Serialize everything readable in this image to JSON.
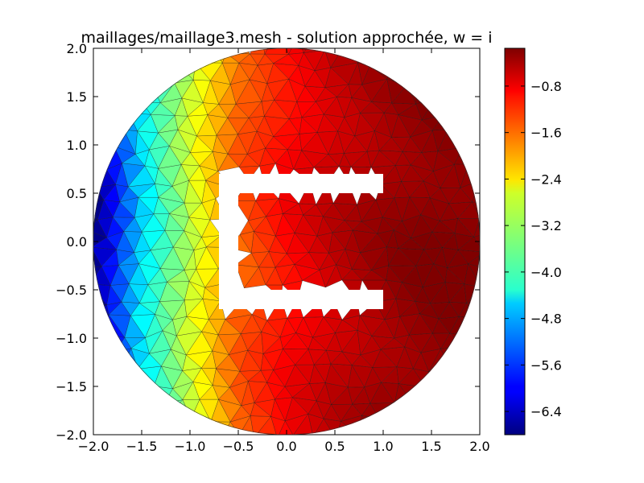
{
  "chart_data": {
    "type": "heatmap",
    "subtype": "tripcolor-mesh",
    "title": "maillages/maillage3.mesh - solution approchée, w = i",
    "xlabel": "",
    "ylabel": "",
    "xlim": [
      -2.0,
      2.0
    ],
    "ylim": [
      -2.0,
      2.0
    ],
    "x_ticks": [
      -2.0,
      -1.5,
      -1.0,
      -0.5,
      0.0,
      0.5,
      1.0,
      1.5,
      2.0
    ],
    "y_ticks": [
      -2.0,
      -1.5,
      -1.0,
      -0.5,
      0.0,
      0.5,
      1.0,
      1.5,
      2.0
    ],
    "x_tick_labels": [
      "−2.0",
      "−1.5",
      "−1.0",
      "−0.5",
      "0.0",
      "0.5",
      "1.0",
      "1.5",
      "2.0"
    ],
    "y_tick_labels": [
      "−2.0",
      "−1.5",
      "−1.0",
      "−0.5",
      "0.0",
      "0.5",
      "1.0",
      "1.5",
      "2.0"
    ],
    "grid": false,
    "domain": {
      "shape": "disk",
      "center": [
        0,
        0
      ],
      "radius": 2.0,
      "hole": {
        "shape": "C-shaped slot",
        "outer_x": [
          -0.7,
          1.0
        ],
        "outer_y": [
          -0.7,
          0.7
        ],
        "arm_thickness": 0.2,
        "opening": "right"
      }
    },
    "field": {
      "description": "approximate solution, increasing from left to right",
      "approx_value_at_x": [
        {
          "x": -2.0,
          "value": -6.8
        },
        {
          "x": -1.5,
          "value": -4.5
        },
        {
          "x": -1.0,
          "value": -3.0
        },
        {
          "x": -0.5,
          "value": -1.6
        },
        {
          "x": 0.0,
          "value": -1.0
        },
        {
          "x": 0.5,
          "value": -0.6
        },
        {
          "x": 1.0,
          "value": -0.35
        },
        {
          "x": 1.5,
          "value": -0.2
        },
        {
          "x": 2.0,
          "value": -0.15
        }
      ]
    },
    "colorbar": {
      "colormap": "jet",
      "range": [
        -6.8,
        -0.15
      ],
      "ticks": [
        -6.4,
        -5.6,
        -4.8,
        -4.0,
        -3.2,
        -2.4,
        -1.6,
        -0.8
      ],
      "tick_labels": [
        "−6.4",
        "−5.6",
        "−4.8",
        "−4.0",
        "−3.2",
        "−2.4",
        "−1.6",
        "−0.8"
      ],
      "placement": "right"
    }
  }
}
